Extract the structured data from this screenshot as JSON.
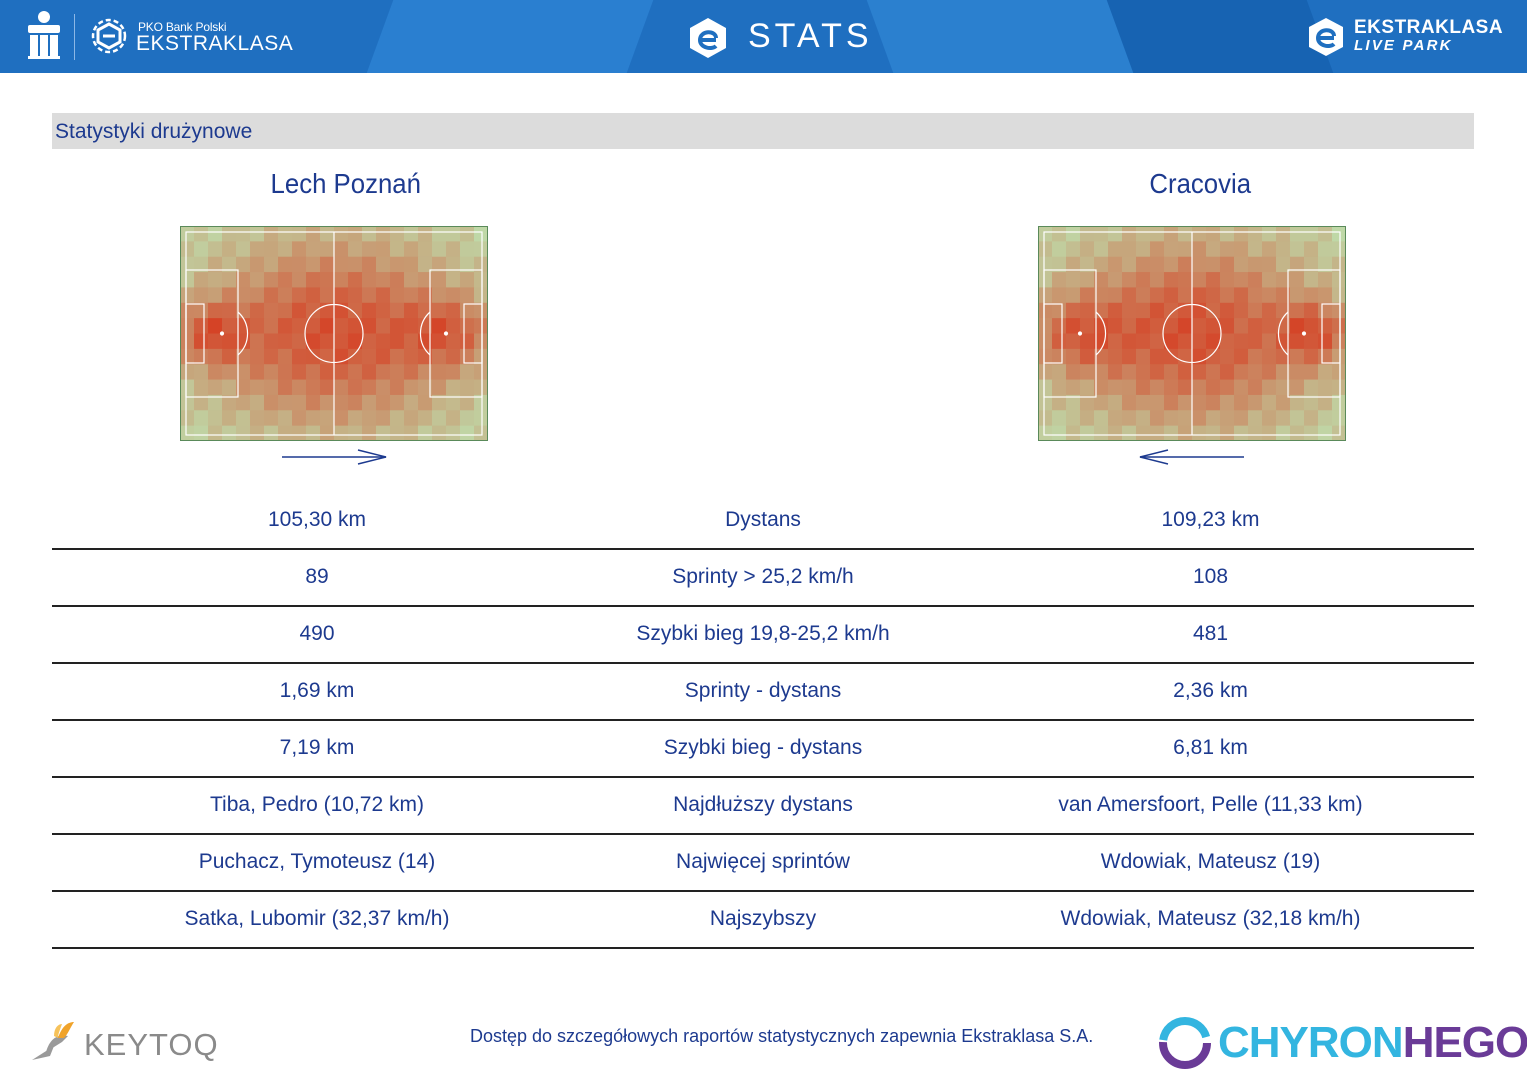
{
  "header": {
    "pko_bank": "PKO Bank Polski",
    "ekstraklasa": "EKSTRAKLASA",
    "stats": "STATS",
    "livepark_line1": "EKSTRAKLASA",
    "livepark_line2": "LIVE PARK",
    "brand_color": "#1f6fc0"
  },
  "section": {
    "title": "Statystyki drużynowe"
  },
  "teams": {
    "home": "Lech Poznań",
    "away": "Cracovia"
  },
  "heatmaps": {
    "home_direction": "right",
    "away_direction": "left",
    "low_color": "#bfd9a8",
    "high_color": "#d63a1f"
  },
  "rows": [
    {
      "home": "105,30 km",
      "label": "Dystans",
      "away": "109,23 km"
    },
    {
      "home": "89",
      "label": "Sprinty > 25,2 km/h",
      "away": "108"
    },
    {
      "home": "490",
      "label": "Szybki bieg 19,8-25,2 km/h",
      "away": "481"
    },
    {
      "home": "1,69 km",
      "label": "Sprinty - dystans",
      "away": "2,36 km"
    },
    {
      "home": "7,19 km",
      "label": "Szybki bieg - dystans",
      "away": "6,81 km"
    },
    {
      "home": "Tiba, Pedro (10,72 km)",
      "label": "Najdłuższy dystans",
      "away": "van Amersfoort, Pelle (11,33 km)"
    },
    {
      "home": "Puchacz, Tymoteusz (14)",
      "label": "Najwięcej sprintów",
      "away": "Wdowiak, Mateusz (19)"
    },
    {
      "home": "Satka, Lubomir (32,37 km/h)",
      "label": "Najszybszy",
      "away": "Wdowiak, Mateusz (32,18 km/h)"
    }
  ],
  "footer": {
    "keytoq": "KEYTOQ",
    "note": "Dostęp do szczegółowych raportów statystycznych zapewnia Ekstraklasa S.A.",
    "chyron_a": "CHYRON",
    "chyron_b": "HEGO"
  }
}
